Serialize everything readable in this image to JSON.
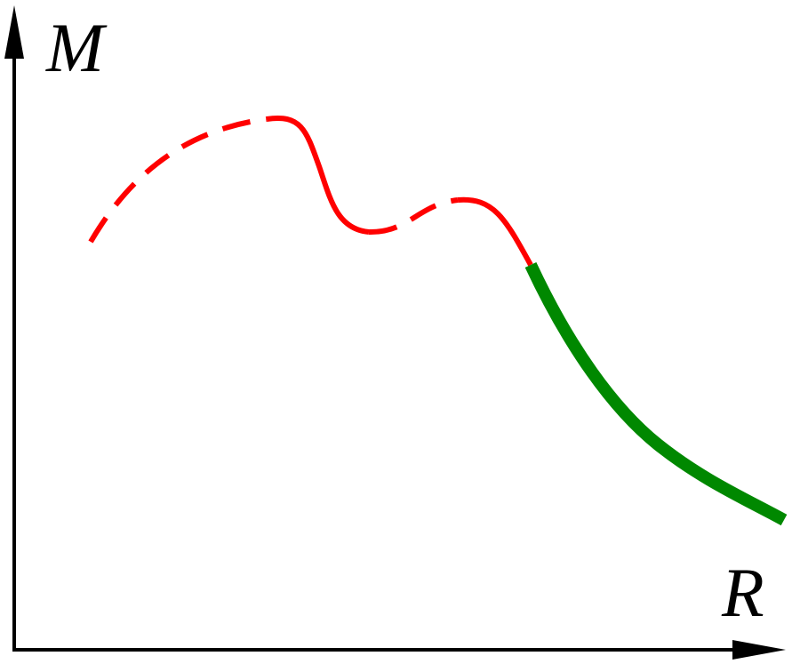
{
  "axes": {
    "y_label": "M",
    "x_label": "R",
    "color": "#000000"
  },
  "curve": {
    "unstable_color": "#ff0000",
    "stable_color": "#008800"
  }
}
